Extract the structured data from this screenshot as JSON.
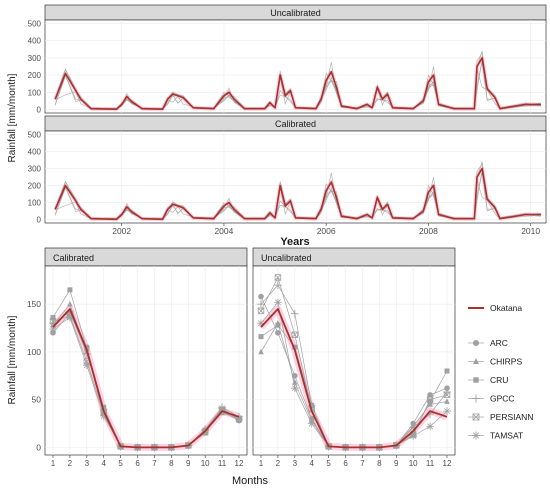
{
  "chart_data": [
    {
      "type": "line",
      "title": "",
      "xlabel": "Years",
      "ylabel": "Rainfall [mm/month]",
      "x_ticks": [
        2002,
        2004,
        2006,
        2008,
        2010
      ],
      "x_range": [
        2000.5,
        2010.3
      ],
      "y_ticks": [
        0,
        100,
        200,
        300,
        400,
        500
      ],
      "ylim": [
        -20,
        520
      ],
      "grid": true,
      "series_color": "#a93226",
      "products_color": "#a0a0a0",
      "panels": [
        {
          "title": "Uncalibrated",
          "series": [
            {
              "name": "Okatana",
              "values": [
                [
                  2000.7,
                  60
                ],
                [
                  2000.9,
                  210
                ],
                [
                  2001.1,
                  110
                ],
                [
                  2001.2,
                  60
                ],
                [
                  2001.4,
                  5
                ],
                [
                  2001.9,
                  2
                ],
                [
                  2002.0,
                  30
                ],
                [
                  2002.1,
                  75
                ],
                [
                  2002.2,
                  45
                ],
                [
                  2002.4,
                  5
                ],
                [
                  2002.8,
                  2
                ],
                [
                  2002.9,
                  60
                ],
                [
                  2003.0,
                  90
                ],
                [
                  2003.1,
                  80
                ],
                [
                  2003.2,
                  70
                ],
                [
                  2003.4,
                  10
                ],
                [
                  2003.8,
                  5
                ],
                [
                  2004.0,
                  80
                ],
                [
                  2004.1,
                  100
                ],
                [
                  2004.2,
                  60
                ],
                [
                  2004.4,
                  5
                ],
                [
                  2004.8,
                  5
                ],
                [
                  2004.9,
                  40
                ],
                [
                  2005.0,
                  10
                ],
                [
                  2005.1,
                  200
                ],
                [
                  2005.2,
                  80
                ],
                [
                  2005.3,
                  110
                ],
                [
                  2005.4,
                  10
                ],
                [
                  2005.8,
                  5
                ],
                [
                  2005.9,
                  60
                ],
                [
                  2006.0,
                  170
                ],
                [
                  2006.1,
                  220
                ],
                [
                  2006.2,
                  130
                ],
                [
                  2006.3,
                  20
                ],
                [
                  2006.6,
                  5
                ],
                [
                  2006.8,
                  30
                ],
                [
                  2006.9,
                  10
                ],
                [
                  2007.0,
                  130
                ],
                [
                  2007.1,
                  60
                ],
                [
                  2007.2,
                  90
                ],
                [
                  2007.3,
                  10
                ],
                [
                  2007.7,
                  5
                ],
                [
                  2007.9,
                  50
                ],
                [
                  2008.0,
                  160
                ],
                [
                  2008.1,
                  200
                ],
                [
                  2008.2,
                  30
                ],
                [
                  2008.5,
                  5
                ],
                [
                  2008.9,
                  5
                ],
                [
                  2008.95,
                  250
                ],
                [
                  2009.05,
                  300
                ],
                [
                  2009.15,
                  120
                ],
                [
                  2009.3,
                  70
                ],
                [
                  2009.4,
                  5
                ],
                [
                  2009.9,
                  30
                ],
                [
                  2010.2,
                  30
                ]
              ]
            }
          ]
        },
        {
          "title": "Calibrated",
          "series": [
            {
              "name": "Okatana",
              "values": [
                [
                  2000.7,
                  60
                ],
                [
                  2000.9,
                  200
                ],
                [
                  2001.1,
                  110
                ],
                [
                  2001.2,
                  60
                ],
                [
                  2001.4,
                  5
                ],
                [
                  2001.9,
                  2
                ],
                [
                  2002.0,
                  30
                ],
                [
                  2002.1,
                  75
                ],
                [
                  2002.2,
                  45
                ],
                [
                  2002.4,
                  5
                ],
                [
                  2002.8,
                  2
                ],
                [
                  2002.9,
                  60
                ],
                [
                  2003.0,
                  90
                ],
                [
                  2003.1,
                  80
                ],
                [
                  2003.2,
                  70
                ],
                [
                  2003.4,
                  10
                ],
                [
                  2003.8,
                  5
                ],
                [
                  2004.0,
                  80
                ],
                [
                  2004.1,
                  100
                ],
                [
                  2004.2,
                  60
                ],
                [
                  2004.4,
                  5
                ],
                [
                  2004.8,
                  5
                ],
                [
                  2004.9,
                  40
                ],
                [
                  2005.0,
                  10
                ],
                [
                  2005.1,
                  200
                ],
                [
                  2005.2,
                  80
                ],
                [
                  2005.3,
                  110
                ],
                [
                  2005.4,
                  10
                ],
                [
                  2005.8,
                  5
                ],
                [
                  2005.9,
                  60
                ],
                [
                  2006.0,
                  170
                ],
                [
                  2006.1,
                  220
                ],
                [
                  2006.2,
                  130
                ],
                [
                  2006.3,
                  20
                ],
                [
                  2006.6,
                  5
                ],
                [
                  2006.8,
                  30
                ],
                [
                  2006.9,
                  10
                ],
                [
                  2007.0,
                  130
                ],
                [
                  2007.1,
                  60
                ],
                [
                  2007.2,
                  90
                ],
                [
                  2007.3,
                  10
                ],
                [
                  2007.7,
                  5
                ],
                [
                  2007.9,
                  50
                ],
                [
                  2008.0,
                  160
                ],
                [
                  2008.1,
                  200
                ],
                [
                  2008.2,
                  30
                ],
                [
                  2008.5,
                  5
                ],
                [
                  2008.9,
                  5
                ],
                [
                  2008.95,
                  250
                ],
                [
                  2009.05,
                  300
                ],
                [
                  2009.15,
                  120
                ],
                [
                  2009.3,
                  70
                ],
                [
                  2009.4,
                  5
                ],
                [
                  2009.9,
                  30
                ],
                [
                  2010.2,
                  30
                ]
              ]
            }
          ]
        }
      ]
    },
    {
      "type": "line",
      "title": "",
      "xlabel": "Months",
      "ylabel": "Rainfall [mm/month]",
      "categories": [
        1,
        2,
        3,
        4,
        5,
        6,
        7,
        8,
        9,
        10,
        11,
        12
      ],
      "y_ticks": [
        0,
        50,
        100,
        150
      ],
      "ylim": [
        -8,
        190
      ],
      "grid": true,
      "legend_position": "right",
      "legend_main": "Okatana",
      "legend_items": [
        {
          "name": "ARC",
          "marker": "circle"
        },
        {
          "name": "CHIRPS",
          "marker": "triangle"
        },
        {
          "name": "CRU",
          "marker": "square"
        },
        {
          "name": "GPCC",
          "marker": "plus"
        },
        {
          "name": "PERSIANN",
          "marker": "boxed-x"
        },
        {
          "name": "TAMSAT",
          "marker": "asterisk"
        }
      ],
      "panels": [
        {
          "title": "Calibrated",
          "okatana": [
            126,
            145,
            102,
            38,
            1,
            0,
            0,
            0,
            2,
            17,
            38,
            32
          ],
          "series": [
            {
              "name": "ARC",
              "values": [
                120,
                140,
                105,
                35,
                1,
                0,
                0,
                0,
                2,
                18,
                38,
                28
              ]
            },
            {
              "name": "CHIRPS",
              "values": [
                128,
                150,
                100,
                38,
                1,
                0,
                0,
                0,
                2,
                17,
                36,
                30
              ]
            },
            {
              "name": "CRU",
              "values": [
                136,
                165,
                103,
                42,
                1,
                0,
                0,
                0,
                2,
                15,
                40,
                30
              ]
            },
            {
              "name": "GPCC",
              "values": [
                130,
                142,
                98,
                40,
                1,
                0,
                0,
                0,
                2,
                19,
                42,
                32
              ]
            },
            {
              "name": "PERSIANN",
              "values": [
                132,
                138,
                90,
                36,
                1,
                0,
                0,
                0,
                2,
                16,
                38,
                30
              ]
            },
            {
              "name": "TAMSAT",
              "values": [
                124,
                136,
                86,
                33,
                1,
                0,
                0,
                0,
                2,
                18,
                41,
                29
              ]
            }
          ]
        },
        {
          "title": "Uncalibrated",
          "okatana": [
            126,
            145,
            102,
            38,
            1,
            0,
            0,
            0,
            2,
            17,
            38,
            32
          ],
          "series": [
            {
              "name": "ARC",
              "values": [
                158,
                120,
                75,
                30,
                1,
                0,
                0,
                0,
                2,
                25,
                55,
                62
              ]
            },
            {
              "name": "CHIRPS",
              "values": [
                100,
                130,
                68,
                28,
                1,
                0,
                0,
                0,
                2,
                22,
                45,
                48
              ]
            },
            {
              "name": "CRU",
              "values": [
                116,
                128,
                105,
                44,
                1,
                0,
                0,
                0,
                2,
                15,
                48,
                80
              ]
            },
            {
              "name": "GPCC",
              "values": [
                150,
                170,
                140,
                44,
                1,
                0,
                0,
                0,
                2,
                21,
                35,
                58
              ]
            },
            {
              "name": "PERSIANN",
              "values": [
                143,
                178,
                118,
                40,
                1,
                0,
                0,
                0,
                2,
                13,
                50,
                55
              ]
            },
            {
              "name": "TAMSAT",
              "values": [
                130,
                152,
                62,
                25,
                1,
                0,
                0,
                0,
                2,
                12,
                22,
                38
              ]
            }
          ]
        }
      ]
    }
  ]
}
